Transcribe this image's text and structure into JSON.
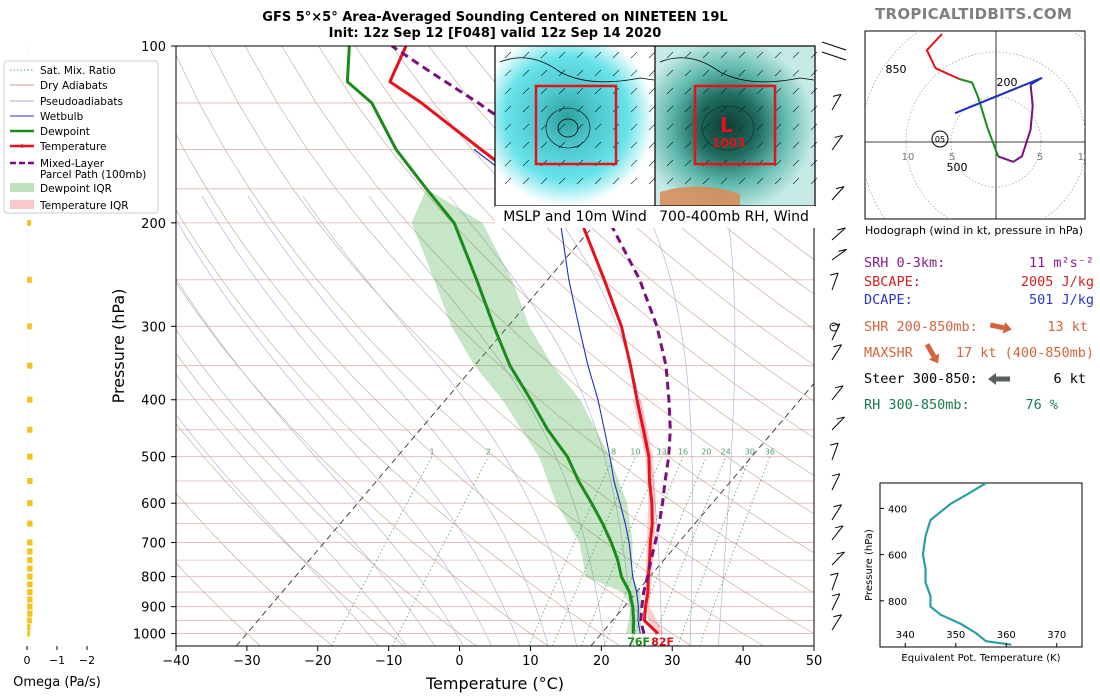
{
  "header": {
    "title_line1": "GFS 5°×5° Area-Averaged Sounding Centered on NINETEEN 19L",
    "title_line2": "Init: 12z Sep 12 [F048] valid 12z Sep 14 2020",
    "site": "TROPICALTIDBITS.COM"
  },
  "colors": {
    "temperature": "#e8101a",
    "dewpoint": "#1a8c1a",
    "parcel": "#7b0f7b",
    "wetbulb": "#1c2fbf",
    "omega": "#f2c318",
    "srh": "#8b1b8b",
    "sbcape": "#d62020",
    "dcape": "#2a36c8",
    "shear": "#d4643c",
    "steer": "#000000",
    "rh": "#1a7a50"
  },
  "legend": {
    "items": [
      {
        "label": "Sat. Mix. Ratio",
        "style": "dotted-green"
      },
      {
        "label": "Dry Adiabats",
        "style": "thin-tan"
      },
      {
        "label": "Pseudoadiabats",
        "style": "thin-blue"
      },
      {
        "label": "Wetbulb",
        "style": "blue"
      },
      {
        "label": "Dewpoint",
        "style": "green"
      },
      {
        "label": "Temperature",
        "style": "red"
      },
      {
        "label": "Mixed-Layer",
        "label2": "Parcel Path (100mb)",
        "style": "dashed-purple"
      },
      {
        "label": "Dewpoint IQR",
        "style": "fill-green"
      },
      {
        "label": "Temperature IQR",
        "style": "fill-red"
      }
    ]
  },
  "chart_data": [
    {
      "type": "line",
      "name": "skew-t",
      "xlabel": "Temperature (°C)",
      "ylabel": "Pressure (hPa)",
      "xlim": [
        -40,
        50
      ],
      "ylim": [
        1050,
        100
      ],
      "xticks": [
        -40,
        -30,
        -20,
        -10,
        0,
        10,
        20,
        30,
        40,
        50
      ],
      "yticks": [
        100,
        200,
        300,
        400,
        500,
        600,
        700,
        800,
        900,
        1000
      ],
      "mixing_ratio_labels": [
        "1",
        "2",
        "8",
        "10",
        "13",
        "16",
        "20",
        "24",
        "30",
        "36"
      ],
      "surface_labels": {
        "dewpoint": "76F",
        "temperature": "82F"
      },
      "series": [
        {
          "name": "Temperature",
          "points": [
            [
              28,
              1000
            ],
            [
              24.5,
              950
            ],
            [
              23,
              900
            ],
            [
              21.6,
              850
            ],
            [
              19.8,
              800
            ],
            [
              18,
              750
            ],
            [
              16,
              700
            ],
            [
              14,
              650
            ],
            [
              11.5,
              600
            ],
            [
              8.5,
              550
            ],
            [
              5.5,
              500
            ],
            [
              1.5,
              450
            ],
            [
              -3,
              400
            ],
            [
              -8,
              350
            ],
            [
              -14,
              300
            ],
            [
              -22,
              250
            ],
            [
              -32,
              200
            ],
            [
              -43,
              175
            ],
            [
              -55,
              150
            ],
            [
              -69,
              125
            ],
            [
              -76,
              115
            ],
            [
              -78,
              100
            ]
          ]
        },
        {
          "name": "Dewpoint",
          "points": [
            [
              24.5,
              1000
            ],
            [
              23,
              950
            ],
            [
              21.2,
              900
            ],
            [
              19,
              850
            ],
            [
              16,
              800
            ],
            [
              13.5,
              750
            ],
            [
              10.5,
              700
            ],
            [
              7,
              650
            ],
            [
              3,
              600
            ],
            [
              -1.5,
              550
            ],
            [
              -6,
              500
            ],
            [
              -12,
              450
            ],
            [
              -18,
              400
            ],
            [
              -25,
              350
            ],
            [
              -32,
              300
            ],
            [
              -40,
              250
            ],
            [
              -50,
              200
            ],
            [
              -58,
              175
            ],
            [
              -67,
              150
            ],
            [
              -76,
              125
            ],
            [
              -82,
              115
            ],
            [
              -86,
              100
            ]
          ]
        },
        {
          "name": "Wetbulb",
          "points": [
            [
              25.5,
              1000
            ],
            [
              23.6,
              950
            ],
            [
              22,
              900
            ],
            [
              20,
              850
            ],
            [
              17.6,
              800
            ],
            [
              15.4,
              750
            ],
            [
              13,
              700
            ],
            [
              10.2,
              650
            ],
            [
              7,
              600
            ],
            [
              3.5,
              550
            ],
            [
              0,
              500
            ],
            [
              -4,
              450
            ],
            [
              -8.5,
              400
            ],
            [
              -14,
              350
            ],
            [
              -20,
              300
            ],
            [
              -27,
              250
            ],
            [
              -35,
              200
            ],
            [
              -44,
              175
            ],
            [
              -56,
              150
            ]
          ]
        },
        {
          "name": "Mixed-Layer Parcel Path (100mb)",
          "points": [
            [
              26,
              1000
            ],
            [
              24,
              950
            ],
            [
              22.5,
              900
            ],
            [
              21,
              850
            ],
            [
              19.7,
              800
            ],
            [
              18.2,
              750
            ],
            [
              16.7,
              700
            ],
            [
              15,
              650
            ],
            [
              13,
              600
            ],
            [
              10.7,
              550
            ],
            [
              8.3,
              500
            ],
            [
              5.3,
              450
            ],
            [
              1.5,
              400
            ],
            [
              -3,
              350
            ],
            [
              -9,
              300
            ],
            [
              -17,
              250
            ],
            [
              -28,
              200
            ],
            [
              -36,
              175
            ],
            [
              -46,
              150
            ],
            [
              -61,
              125
            ],
            [
              -72,
              110
            ],
            [
              -80,
              100
            ]
          ]
        }
      ],
      "dewpoint_iqr": {
        "low": [
          [
            23.5,
            1000
          ],
          [
            21,
            900
          ],
          [
            18,
            850
          ],
          [
            11,
            800
          ],
          [
            6,
            700
          ],
          [
            -2,
            600
          ],
          [
            -10,
            500
          ],
          [
            -22,
            400
          ],
          [
            -30,
            350
          ],
          [
            -38,
            300
          ],
          [
            -46,
            250
          ],
          [
            -56,
            200
          ],
          [
            -58,
            175
          ]
        ],
        "high": [
          [
            25.5,
            1000
          ],
          [
            22.5,
            900
          ],
          [
            20.5,
            850
          ],
          [
            17.5,
            800
          ],
          [
            13.5,
            700
          ],
          [
            8,
            600
          ],
          [
            0,
            500
          ],
          [
            -11,
            400
          ],
          [
            -19,
            350
          ],
          [
            -27,
            300
          ],
          [
            -35,
            250
          ],
          [
            -46,
            200
          ],
          [
            -58,
            175
          ]
        ]
      },
      "temperature_iqr": {
        "low": [
          [
            27.5,
            1000
          ],
          [
            22.8,
            900
          ],
          [
            19.4,
            800
          ],
          [
            15.5,
            700
          ],
          [
            11,
            600
          ],
          [
            5,
            500
          ],
          [
            -3.6,
            400
          ]
        ],
        "high": [
          [
            28.8,
            1000
          ],
          [
            23.6,
            900
          ],
          [
            20.3,
            800
          ],
          [
            16.6,
            700
          ],
          [
            12.1,
            600
          ],
          [
            6.1,
            500
          ],
          [
            -2.4,
            400
          ]
        ]
      }
    },
    {
      "type": "bar",
      "name": "omega",
      "xlabel": "Omega (Pa/s)",
      "xticks": [
        "0",
        "−1",
        "−2"
      ],
      "pressures": [
        1000,
        975,
        950,
        925,
        900,
        875,
        850,
        825,
        800,
        775,
        750,
        725,
        700,
        650,
        600,
        550,
        500,
        450,
        400,
        350,
        300,
        250,
        200
      ],
      "values": [
        -0.03,
        -0.05,
        -0.07,
        -0.08,
        -0.08,
        -0.08,
        -0.08,
        -0.08,
        -0.08,
        -0.08,
        -0.08,
        -0.08,
        -0.08,
        -0.08,
        -0.08,
        -0.08,
        -0.08,
        -0.08,
        -0.08,
        -0.08,
        -0.07,
        -0.07,
        -0.06
      ]
    },
    {
      "type": "line",
      "name": "hodograph",
      "caption": "Hodograph (wind in kt, pressure in hPa)",
      "ring_labels": [
        "10",
        "5",
        "5",
        "10"
      ],
      "level_labels": [
        "850",
        "200",
        "500"
      ],
      "storm_motion_label": "05",
      "series": [
        {
          "name": "red",
          "points": [
            [
              -5,
              12
            ],
            [
              -6.4,
              10.2
            ],
            [
              -5.6,
              8.2
            ],
            [
              -3.4,
              7
            ]
          ]
        },
        {
          "name": "green",
          "points": [
            [
              -3.4,
              7
            ],
            [
              -2.2,
              6.6
            ],
            [
              -1.6,
              4.8
            ],
            [
              -0.8,
              1.6
            ],
            [
              0.2,
              -1.6
            ]
          ]
        },
        {
          "name": "purple",
          "points": [
            [
              0.2,
              -1.6
            ],
            [
              1.6,
              -2.2
            ],
            [
              2.4,
              -1.6
            ],
            [
              3.2,
              1.4
            ],
            [
              3.4,
              4.0
            ],
            [
              3.2,
              6.4
            ]
          ]
        },
        {
          "name": "blue",
          "points": [
            [
              3.2,
              6.4
            ],
            [
              4.2,
              7.1
            ],
            [
              -3.8,
              3.2
            ]
          ]
        }
      ]
    },
    {
      "type": "line",
      "name": "theta-e",
      "xlabel": "Equivalent Pot. Temperature (K)",
      "ylabel": "Pressure (hPa)",
      "xlim": [
        335,
        375
      ],
      "ylim": [
        1000,
        290
      ],
      "xticks": [
        340,
        350,
        360,
        370
      ],
      "yticks": [
        400,
        600,
        800
      ],
      "series": [
        {
          "name": "theta-e",
          "points": [
            [
              361,
              990
            ],
            [
              356,
              975
            ],
            [
              354,
              940
            ],
            [
              351,
              900
            ],
            [
              347,
              860
            ],
            [
              345,
              825
            ],
            [
              345,
              780
            ],
            [
              344,
              720
            ],
            [
              344,
              660
            ],
            [
              343.5,
              600
            ],
            [
              344,
              520
            ],
            [
              345,
              450
            ],
            [
              349,
              380
            ],
            [
              353,
              330
            ],
            [
              356,
              290
            ]
          ]
        }
      ]
    }
  ],
  "insets": {
    "left_caption": "MSLP and 10m Wind",
    "right_caption": "700-400mb RH, Wind",
    "low_pressure_label": "1003"
  },
  "params": [
    {
      "label": "SRH 0-3km:",
      "value": "11 m²s⁻²",
      "color_key": "srh"
    },
    {
      "label": "SBCAPE:",
      "value": "2005 J/kg",
      "color_key": "sbcape"
    },
    {
      "label": "DCAPE:",
      "value": "501 J/kg",
      "color_key": "dcape"
    },
    {
      "label": "SHR 200-850mb:",
      "value": "13 kt",
      "color_key": "shear",
      "arrow": "right-down"
    },
    {
      "label": "MAXSHR",
      "value": "17 kt (400-850mb)",
      "color_key": "shear",
      "arrow": "down"
    },
    {
      "label": "Steer 300-850:",
      "value": "6 kt",
      "color_key": "steer",
      "arrow": "left"
    },
    {
      "label": "RH 300-850mb:",
      "value": "76 %",
      "color_key": "rh"
    }
  ]
}
